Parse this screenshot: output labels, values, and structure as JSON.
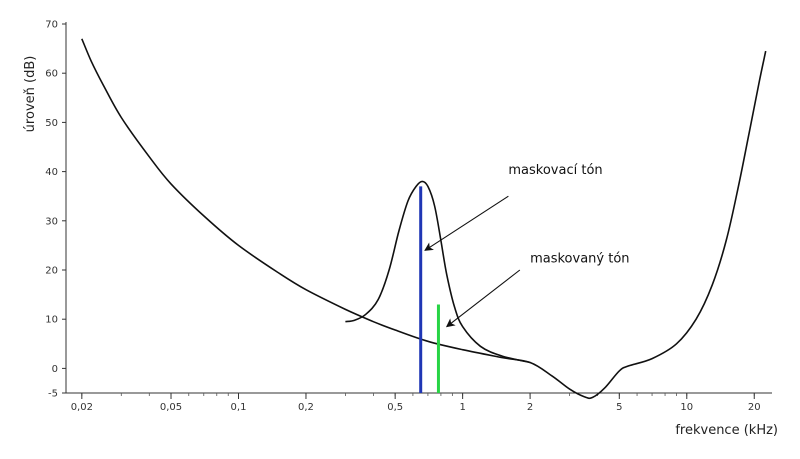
{
  "chart_data": {
    "type": "line",
    "title": "",
    "xlabel": "frekvence (kHz)",
    "ylabel": "úroveň (dB)",
    "x_scale": "log",
    "xlim": [
      0.017,
      24
    ],
    "ylim": [
      -5,
      70
    ],
    "grid": false,
    "x_ticks": [
      {
        "v": 0.02,
        "label": "0,02"
      },
      {
        "v": 0.05,
        "label": "0,05"
      },
      {
        "v": 0.1,
        "label": "0,1"
      },
      {
        "v": 0.2,
        "label": "0,2"
      },
      {
        "v": 0.5,
        "label": "0,5"
      },
      {
        "v": 1,
        "label": "1"
      },
      {
        "v": 2,
        "label": "2"
      },
      {
        "v": 5,
        "label": "5"
      },
      {
        "v": 10,
        "label": "10"
      },
      {
        "v": 20,
        "label": "20"
      }
    ],
    "y_ticks": [
      {
        "v": -5,
        "label": "-5"
      },
      {
        "v": 0,
        "label": "0"
      },
      {
        "v": 10,
        "label": "10"
      },
      {
        "v": 20,
        "label": "20"
      },
      {
        "v": 30,
        "label": "30"
      },
      {
        "v": 40,
        "label": "40"
      },
      {
        "v": 50,
        "label": "50"
      },
      {
        "v": 60,
        "label": "60"
      },
      {
        "v": 70,
        "label": "70"
      }
    ],
    "series": [
      {
        "color": "#111111",
        "points": [
          [
            0.02,
            67
          ],
          [
            0.022,
            62.5
          ],
          [
            0.025,
            57.5
          ],
          [
            0.03,
            51
          ],
          [
            0.04,
            43
          ],
          [
            0.05,
            37.5
          ],
          [
            0.07,
            31
          ],
          [
            0.1,
            25
          ],
          [
            0.15,
            19.5
          ],
          [
            0.2,
            16
          ],
          [
            0.3,
            12
          ],
          [
            0.4,
            9.5
          ],
          [
            0.5,
            7.8
          ],
          [
            0.7,
            5.5
          ],
          [
            1.0,
            3.8
          ],
          [
            1.5,
            2.2
          ],
          [
            2.0,
            1.2
          ],
          [
            2.5,
            -1.5
          ],
          [
            3.0,
            -4.2
          ],
          [
            3.5,
            -5.8
          ],
          [
            3.8,
            -5.9
          ],
          [
            4.3,
            -4
          ],
          [
            5.0,
            -0.5
          ],
          [
            5.5,
            0.5
          ],
          [
            7,
            2
          ],
          [
            9,
            5
          ],
          [
            11,
            10
          ],
          [
            13,
            17
          ],
          [
            15,
            26
          ],
          [
            17,
            37
          ],
          [
            19,
            48
          ],
          [
            21,
            58
          ],
          [
            22.5,
            64.5
          ]
        ]
      },
      {
        "color": "#111111",
        "points": [
          [
            0.3,
            9.5
          ],
          [
            0.33,
            9.8
          ],
          [
            0.37,
            11
          ],
          [
            0.42,
            14
          ],
          [
            0.47,
            20
          ],
          [
            0.52,
            28
          ],
          [
            0.57,
            34
          ],
          [
            0.62,
            37
          ],
          [
            0.66,
            38
          ],
          [
            0.7,
            37
          ],
          [
            0.75,
            33
          ],
          [
            0.8,
            26
          ],
          [
            0.85,
            19
          ],
          [
            0.92,
            12.5
          ],
          [
            1.0,
            8.5
          ],
          [
            1.2,
            4.5
          ],
          [
            1.5,
            2.5
          ],
          [
            2.0,
            1.2
          ]
        ]
      }
    ],
    "tones": [
      {
        "x": 0.65,
        "level": 37,
        "color": "#1f36b5"
      },
      {
        "x": 0.78,
        "level": 13,
        "color": "#27d445"
      }
    ],
    "annotations": [
      {
        "text": "maskovací tón",
        "text_anchor": [
          1.6,
          39.5
        ],
        "arrow_from": [
          1.6,
          35
        ],
        "arrow_to": [
          0.68,
          24
        ]
      },
      {
        "text": "maskovaný tón",
        "text_anchor": [
          2.0,
          21.5
        ],
        "arrow_from": [
          1.8,
          20
        ],
        "arrow_to": [
          0.85,
          8.5
        ]
      }
    ]
  }
}
